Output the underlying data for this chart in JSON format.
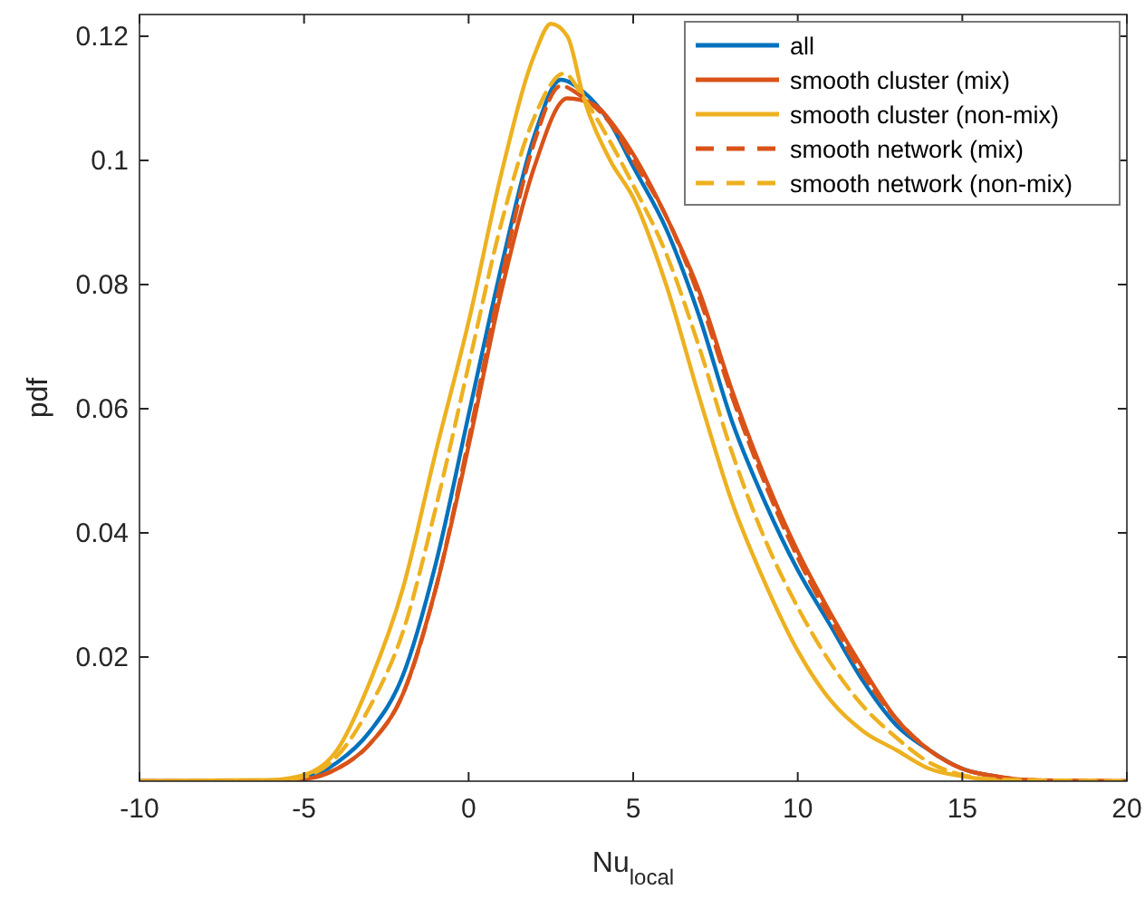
{
  "chart_data": {
    "type": "line",
    "xlabel": "Nu$_{local}$",
    "ylabel": "pdf",
    "xlim": [
      -10,
      20
    ],
    "xticks": [
      -10,
      -5,
      0,
      5,
      10,
      15,
      20
    ],
    "ylim": [
      0,
      0.1235
    ],
    "yticks": [
      0.02,
      0.04,
      0.06,
      0.08,
      0.1,
      0.12
    ],
    "grid": false,
    "legend": "top right",
    "marker": "none",
    "series": [
      {
        "name": "all",
        "color": "#0072bd",
        "line_style": "solid",
        "x": [
          -10,
          -6,
          -5,
          -4,
          -3,
          -2,
          -1,
          0,
          1,
          2,
          2.8,
          3.5,
          4.3,
          5,
          6,
          7,
          8,
          9,
          10,
          11,
          12,
          13,
          14,
          15,
          16
        ],
        "values": [
          0,
          0,
          0.0005,
          0.003,
          0.008,
          0.017,
          0.035,
          0.059,
          0.083,
          0.104,
          0.113,
          0.111,
          0.106,
          0.099,
          0.089,
          0.075,
          0.058,
          0.045,
          0.034,
          0.025,
          0.016,
          0.009,
          0.005,
          0.002,
          0.0008
        ]
      },
      {
        "name": "smooth cluster (mix)",
        "color": "#d95319",
        "line_style": "solid",
        "x": [
          -10,
          -6,
          -5,
          -4,
          -3,
          -2,
          -1,
          0,
          1,
          2,
          3,
          3.8,
          4.5,
          5,
          6,
          7,
          8,
          9,
          10,
          11,
          12,
          13,
          14,
          15,
          16,
          17,
          20
        ],
        "values": [
          0,
          0,
          0.0003,
          0.002,
          0.006,
          0.014,
          0.031,
          0.054,
          0.079,
          0.099,
          0.11,
          0.109,
          0.105,
          0.101,
          0.091,
          0.079,
          0.063,
          0.049,
          0.037,
          0.027,
          0.018,
          0.01,
          0.005,
          0.002,
          0.0008,
          0.0002,
          0
        ]
      },
      {
        "name": "smooth cluster (non-mix)",
        "color": "#edb120",
        "line_style": "solid",
        "x": [
          -10,
          -6,
          -5,
          -4,
          -3,
          -2,
          -1,
          0,
          1,
          2,
          2.5,
          3,
          3.5,
          4.3,
          5,
          6,
          7,
          8,
          9,
          10,
          11,
          12,
          13,
          14,
          15,
          16,
          20
        ],
        "values": [
          0,
          0.0002,
          0.001,
          0.005,
          0.016,
          0.031,
          0.053,
          0.074,
          0.098,
          0.117,
          0.122,
          0.12,
          0.11,
          0.1,
          0.094,
          0.08,
          0.062,
          0.045,
          0.032,
          0.021,
          0.013,
          0.008,
          0.005,
          0.002,
          0.0008,
          0.0002,
          0
        ]
      },
      {
        "name": "smooth network (mix)",
        "color": "#d95319",
        "line_style": "dashed",
        "x": [
          -10,
          -6,
          -5,
          -4,
          -3,
          -2,
          -1,
          0,
          1,
          2,
          2.8,
          3.5,
          4.3,
          5,
          6,
          7,
          8,
          9,
          10,
          11,
          12,
          13,
          14,
          15,
          16,
          17,
          20
        ],
        "values": [
          0,
          0,
          0.0003,
          0.002,
          0.006,
          0.014,
          0.031,
          0.055,
          0.081,
          0.103,
          0.112,
          0.11,
          0.106,
          0.1,
          0.091,
          0.078,
          0.062,
          0.048,
          0.036,
          0.026,
          0.017,
          0.01,
          0.005,
          0.002,
          0.0008,
          0.0002,
          0
        ]
      },
      {
        "name": "smooth network (non-mix)",
        "color": "#edb120",
        "line_style": "dashed",
        "x": [
          -10,
          -6,
          -5,
          -4,
          -3,
          -2,
          -1,
          0,
          1,
          2,
          2.9,
          3.5,
          4.3,
          5,
          6,
          7,
          8,
          9,
          10,
          11,
          12,
          13,
          14,
          15,
          16,
          20
        ],
        "values": [
          0,
          0,
          0.0007,
          0.004,
          0.012,
          0.024,
          0.044,
          0.067,
          0.09,
          0.107,
          0.114,
          0.11,
          0.103,
          0.096,
          0.085,
          0.07,
          0.053,
          0.039,
          0.028,
          0.019,
          0.012,
          0.007,
          0.003,
          0.001,
          0.0003,
          0
        ]
      }
    ]
  }
}
